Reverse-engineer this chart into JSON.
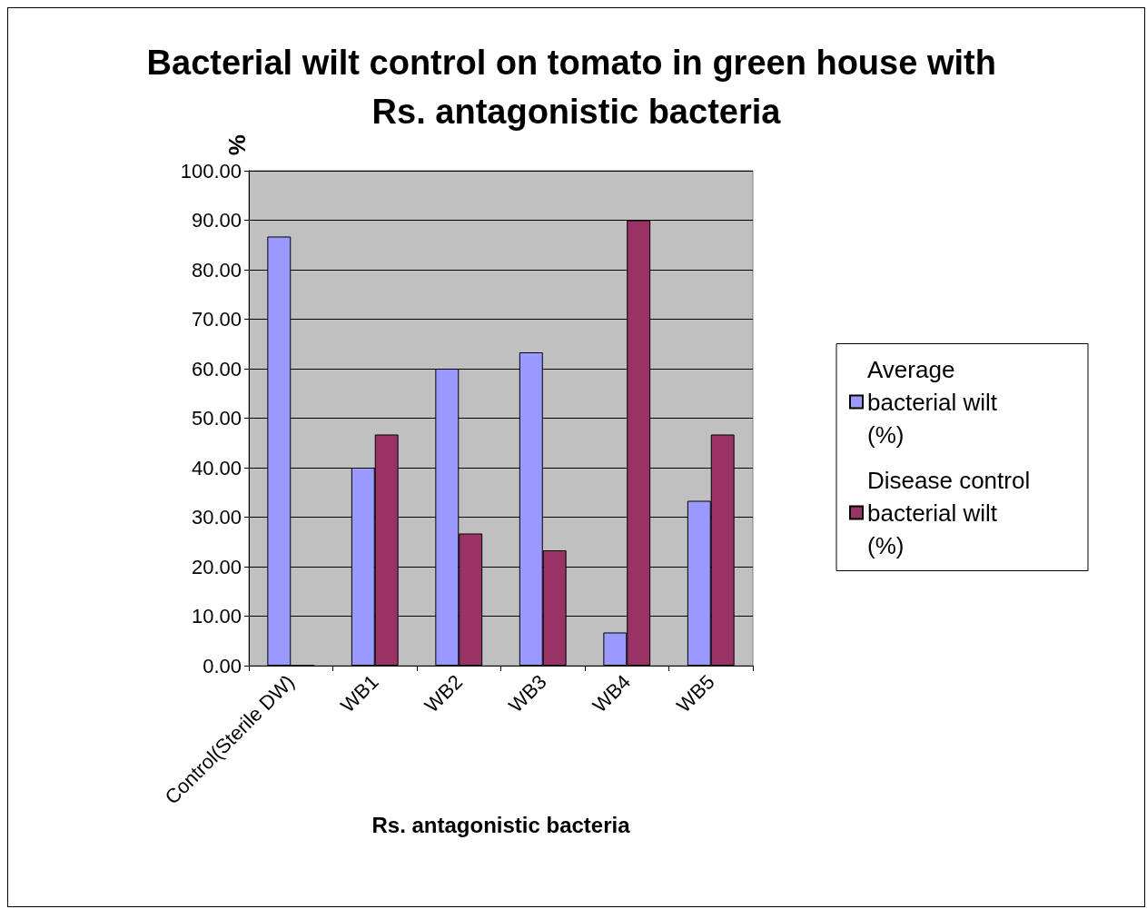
{
  "chart_data": {
    "type": "bar",
    "title": "Bacterial wilt control on tomato in green house with Rs. antagonistic bacteria",
    "xlabel": "Rs. antagonistic bacteria",
    "ylabel": "%",
    "categories": [
      "Control(Sterile DW)",
      "WB1",
      "WB2",
      "WB3",
      "WB4",
      "WB5"
    ],
    "series": [
      {
        "name": "Average bacterial wilt (%)",
        "color": "#9999ff",
        "values": [
          86.7,
          40,
          60,
          63.3,
          6.7,
          33.3
        ]
      },
      {
        "name": "Disease control bacterial wilt (%)",
        "color": "#993366",
        "values": [
          0,
          46.7,
          26.7,
          23.3,
          90,
          46.7
        ]
      }
    ],
    "ylim": [
      0,
      100
    ],
    "yticks": [
      {
        "value": 0,
        "label": "0.00"
      },
      {
        "value": 10,
        "label": "10.00"
      },
      {
        "value": 20,
        "label": "20.00"
      },
      {
        "value": 30,
        "label": "30.00"
      },
      {
        "value": 40,
        "label": "40.00"
      },
      {
        "value": 50,
        "label": "50.00"
      },
      {
        "value": 60,
        "label": "60.00"
      },
      {
        "value": 70,
        "label": "70.00"
      },
      {
        "value": 80,
        "label": "80.00"
      },
      {
        "value": 90,
        "label": "90.00"
      },
      {
        "value": 100,
        "label": "100.00"
      }
    ],
    "grid": "y",
    "legend": "right"
  }
}
